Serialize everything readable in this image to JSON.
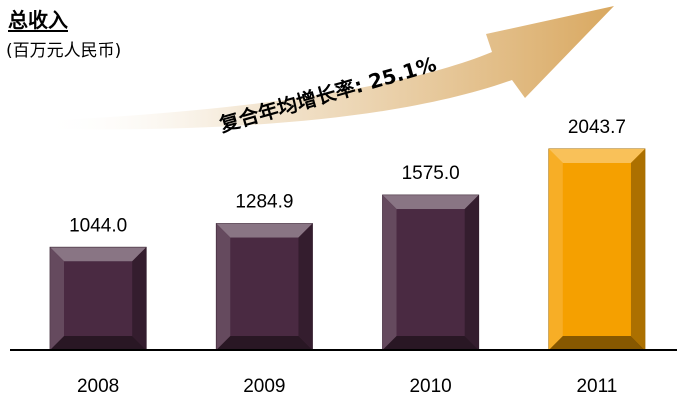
{
  "header": {
    "title": "总收入",
    "subtitle": "(百万元人民币)"
  },
  "annotation": {
    "cagr_text": "复合年均增长率: 25.1%"
  },
  "colors": {
    "bar_default": "#4a2a42",
    "bar_highlight": "#f5a000",
    "arrow": "#e8c890"
  },
  "chart_data": {
    "type": "bar",
    "categories": [
      "2008",
      "2009",
      "2010",
      "2011"
    ],
    "values": [
      1044.0,
      1284.9,
      1575.0,
      2043.7
    ],
    "value_labels": [
      "1044.0",
      "1284.9",
      "1575.0",
      "2043.7"
    ],
    "highlight_index": 3,
    "title": "总收入",
    "subtitle": "(百万元人民币)",
    "xlabel": "",
    "ylabel": "",
    "grid": false,
    "legend": "none"
  }
}
